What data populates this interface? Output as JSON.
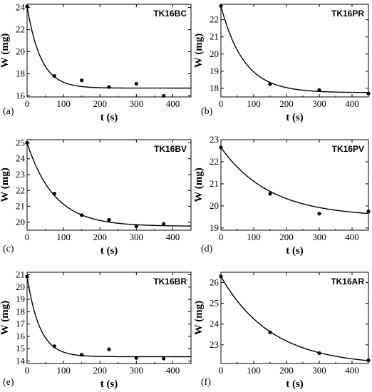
{
  "chart_data": [
    {
      "type": "scatter",
      "panel_label": "(a)",
      "tag": "TK16BC",
      "xlabel": "t (s)",
      "ylabel": "W (mg)",
      "xlim": [
        0,
        450
      ],
      "ylim": [
        15.9,
        24.3
      ],
      "xticks": [
        0,
        100,
        200,
        300,
        400
      ],
      "yticks": [
        16,
        18,
        20,
        22,
        24
      ],
      "points": [
        [
          0,
          24.1
        ],
        [
          75,
          17.8
        ],
        [
          150,
          17.4
        ],
        [
          225,
          16.8
        ],
        [
          300,
          17.1
        ],
        [
          375,
          16.0
        ]
      ],
      "fit": {
        "model": "exponential",
        "w_inf": 16.7,
        "amplitude": 7.4,
        "tau": 38
      }
    },
    {
      "type": "scatter",
      "panel_label": "(b)",
      "tag": "TK16PR",
      "xlabel": "t (s)",
      "ylabel": "W (mg)",
      "xlim": [
        0,
        450
      ],
      "ylim": [
        17.5,
        22.9
      ],
      "xticks": [
        0,
        100,
        200,
        300,
        400
      ],
      "yticks": [
        18,
        19,
        20,
        21,
        22
      ],
      "points": [
        [
          0,
          22.8
        ],
        [
          150,
          18.25
        ],
        [
          300,
          17.9
        ],
        [
          450,
          17.7
        ]
      ],
      "fit": {
        "model": "exponential",
        "w_inf": 17.75,
        "amplitude": 5.05,
        "tau": 70
      }
    },
    {
      "type": "scatter",
      "panel_label": "(c)",
      "tag": "TK16BV",
      "xlabel": "t (s)",
      "ylabel": "W (mg)",
      "xlim": [
        0,
        450
      ],
      "ylim": [
        19.5,
        25.2
      ],
      "xticks": [
        0,
        100,
        200,
        300,
        400
      ],
      "yticks": [
        20,
        21,
        22,
        23,
        24,
        25
      ],
      "points": [
        [
          0,
          25.0
        ],
        [
          75,
          21.8
        ],
        [
          150,
          20.45
        ],
        [
          225,
          20.15
        ],
        [
          300,
          19.75
        ],
        [
          375,
          19.9
        ]
      ],
      "fit": {
        "model": "exponential",
        "w_inf": 19.75,
        "amplitude": 5.25,
        "tau": 75
      }
    },
    {
      "type": "scatter",
      "panel_label": "(d)",
      "tag": "TK16PV",
      "xlabel": "t (s)",
      "ylabel": "W (mg)",
      "xlim": [
        0,
        450
      ],
      "ylim": [
        18.9,
        23.0
      ],
      "xticks": [
        0,
        100,
        200,
        300,
        400
      ],
      "yticks": [
        19,
        20,
        21,
        22,
        23
      ],
      "points": [
        [
          0,
          22.65
        ],
        [
          150,
          20.55
        ],
        [
          300,
          19.65
        ],
        [
          450,
          19.75
        ]
      ],
      "fit": {
        "model": "exponential",
        "w_inf": 19.5,
        "amplitude": 3.15,
        "tau": 150
      }
    },
    {
      "type": "scatter",
      "panel_label": "(e)",
      "tag": "TK16BR",
      "xlabel": "t (s)",
      "ylabel": "W (mg)",
      "xlim": [
        0,
        450
      ],
      "ylim": [
        13.8,
        21.2
      ],
      "xticks": [
        0,
        100,
        200,
        300,
        400
      ],
      "yticks": [
        14,
        15,
        16,
        17,
        18,
        19,
        20,
        21
      ],
      "points": [
        [
          0,
          20.85
        ],
        [
          75,
          15.2
        ],
        [
          150,
          14.5
        ],
        [
          225,
          14.95
        ],
        [
          300,
          14.25
        ],
        [
          375,
          14.2
        ]
      ],
      "fit": {
        "model": "exponential",
        "w_inf": 14.35,
        "amplitude": 6.5,
        "tau": 35
      }
    },
    {
      "type": "scatter",
      "panel_label": "(f)",
      "tag": "TK16AR",
      "xlabel": "t (s)",
      "ylabel": "W (mg)",
      "xlim": [
        0,
        450
      ],
      "ylim": [
        22.1,
        26.5
      ],
      "xticks": [
        0,
        100,
        200,
        300,
        400
      ],
      "yticks": [
        23,
        24,
        25,
        26
      ],
      "points": [
        [
          0,
          26.3
        ],
        [
          150,
          23.6
        ],
        [
          300,
          22.6
        ],
        [
          450,
          22.25
        ]
      ],
      "fit": {
        "model": "exponential",
        "w_inf": 22.0,
        "amplitude": 4.3,
        "tau": 155
      }
    }
  ]
}
